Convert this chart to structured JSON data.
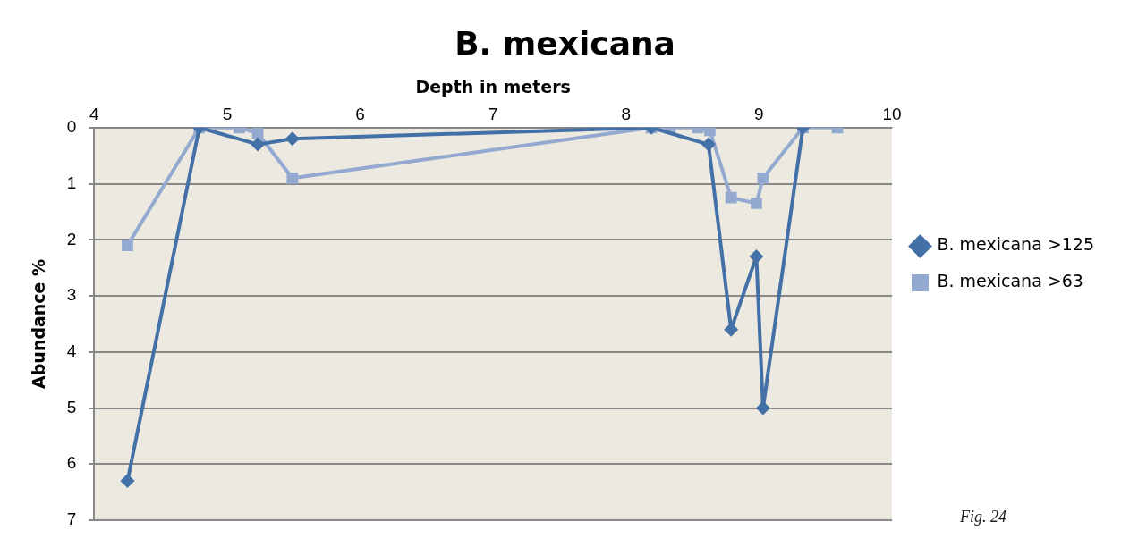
{
  "chart_data": {
    "type": "line",
    "title": "B. mexicana",
    "xlabel": "Depth in meters",
    "ylabel": "Abundance %",
    "xlim": [
      4,
      10
    ],
    "xticks": [
      4,
      5,
      6,
      7,
      8,
      9,
      10
    ],
    "ylim": [
      7,
      0
    ],
    "yticks": [
      0,
      1,
      2,
      3,
      4,
      5,
      6,
      7
    ],
    "grid": "y",
    "legend": "right",
    "line_style": "solid",
    "annotations": [
      "Fig. 24"
    ],
    "series": [
      {
        "name": "B. mexicana >125",
        "color": "#4470a8",
        "marker": "diamond",
        "x": [
          4.25,
          4.79,
          5.23,
          5.49,
          8.19,
          8.62,
          8.79,
          8.98,
          9.03,
          9.33
        ],
        "values": [
          6.3,
          0,
          0.3,
          0.2,
          0,
          0.3,
          3.6,
          2.3,
          5.0,
          0
        ]
      },
      {
        "name": "B. mexicana >63",
        "color": "#94a9d0",
        "marker": "square",
        "x": [
          4.25,
          4.79,
          5.09,
          5.23,
          5.49,
          8.19,
          8.33,
          8.54,
          8.63,
          8.79,
          8.98,
          9.03,
          9.33,
          9.59
        ],
        "values": [
          2.1,
          0,
          0,
          0.1,
          0.9,
          0,
          0,
          0,
          0.05,
          1.25,
          1.35,
          0.9,
          0,
          0
        ]
      }
    ]
  }
}
